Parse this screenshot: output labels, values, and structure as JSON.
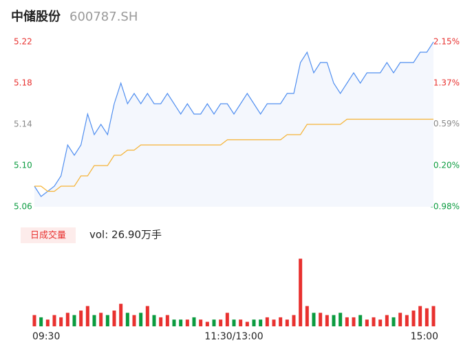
{
  "header": {
    "name": "中储股份",
    "code": "600787.SH"
  },
  "chart_data": [
    {
      "type": "line",
      "xlim": [
        0,
        240
      ],
      "xticks": [
        {
          "value": 0,
          "label": "09:30"
        },
        {
          "value": 120,
          "label": "11:30/13:00"
        },
        {
          "value": 240,
          "label": "15:00"
        }
      ],
      "ylim": [
        5.06,
        5.22
      ],
      "yticks": [
        5.06,
        {
          "value": 5.1,
          "label": "5.10"
        },
        5.14,
        5.18,
        5.22
      ],
      "ytick_colors": [
        "#0a9b3f",
        "#0a9b3f",
        "#888888",
        "#e8312f",
        "#e8312f"
      ],
      "y2lim": [
        -0.98,
        2.15
      ],
      "y2ticks": [
        {
          "value": -0.98,
          "label": "-0.98%"
        },
        {
          "value": -0.2,
          "label": "-0.20%"
        },
        {
          "value": 0.59,
          "label": "0.59%"
        },
        {
          "value": 1.37,
          "label": "1.37%"
        },
        {
          "value": 2.15,
          "label": "2.15%"
        }
      ],
      "x": [
        0,
        4,
        8,
        12,
        16,
        20,
        24,
        28,
        32,
        36,
        40,
        44,
        48,
        52,
        56,
        60,
        64,
        68,
        72,
        76,
        80,
        84,
        88,
        92,
        96,
        100,
        104,
        108,
        112,
        116,
        120,
        124,
        128,
        132,
        136,
        140,
        144,
        148,
        152,
        156,
        160,
        164,
        168,
        172,
        176,
        180,
        184,
        188,
        192,
        196,
        200,
        204,
        208,
        212,
        216,
        220,
        224,
        228,
        232,
        236,
        240
      ],
      "series": [
        {
          "name": "price",
          "color": "#4f8ef0",
          "values": [
            5.08,
            5.07,
            5.075,
            5.08,
            5.09,
            5.12,
            5.11,
            5.12,
            5.15,
            5.13,
            5.14,
            5.13,
            5.16,
            5.18,
            5.16,
            5.17,
            5.16,
            5.17,
            5.16,
            5.16,
            5.17,
            5.16,
            5.15,
            5.16,
            5.15,
            5.15,
            5.16,
            5.15,
            5.16,
            5.16,
            5.15,
            5.16,
            5.17,
            5.16,
            5.15,
            5.16,
            5.16,
            5.16,
            5.17,
            5.17,
            5.2,
            5.21,
            5.19,
            5.2,
            5.2,
            5.18,
            5.17,
            5.18,
            5.19,
            5.18,
            5.19,
            5.19,
            5.19,
            5.2,
            5.19,
            5.2,
            5.2,
            5.2,
            5.21,
            5.21,
            5.22
          ]
        },
        {
          "name": "average",
          "color": "#f5b335",
          "values": [
            5.08,
            5.08,
            5.075,
            5.075,
            5.08,
            5.08,
            5.08,
            5.09,
            5.09,
            5.1,
            5.1,
            5.1,
            5.11,
            5.11,
            5.115,
            5.115,
            5.12,
            5.12,
            5.12,
            5.12,
            5.12,
            5.12,
            5.12,
            5.12,
            5.12,
            5.12,
            5.12,
            5.12,
            5.12,
            5.125,
            5.125,
            5.125,
            5.125,
            5.125,
            5.125,
            5.125,
            5.125,
            5.125,
            5.13,
            5.13,
            5.13,
            5.14,
            5.14,
            5.14,
            5.14,
            5.14,
            5.14,
            5.145,
            5.145,
            5.145,
            5.145,
            5.145,
            5.145,
            5.145,
            5.145,
            5.145,
            5.145,
            5.145,
            5.145,
            5.145,
            5.145
          ]
        }
      ]
    },
    {
      "type": "bar",
      "title": "日成交量",
      "annotation": "vol: 26.90万手",
      "ylim": [
        0,
        3.2
      ],
      "up_color": "#e8312f",
      "down_color": "#0a9b3f",
      "values": [
        0.5,
        0.4,
        0.3,
        0.5,
        0.4,
        0.6,
        0.5,
        0.7,
        0.9,
        0.5,
        0.6,
        0.5,
        0.7,
        1.0,
        0.6,
        0.5,
        0.6,
        0.9,
        0.5,
        0.4,
        0.5,
        0.3,
        0.3,
        0.3,
        0.4,
        0.3,
        0.2,
        0.3,
        0.3,
        0.6,
        0.3,
        0.3,
        0.2,
        0.3,
        0.3,
        0.4,
        0.3,
        0.4,
        0.3,
        0.5,
        3.0,
        0.9,
        0.6,
        0.6,
        0.5,
        0.5,
        0.6,
        0.4,
        0.4,
        0.5,
        0.3,
        0.4,
        0.3,
        0.5,
        0.4,
        0.6,
        0.5,
        0.7,
        0.9,
        0.8,
        0.9
      ]
    }
  ]
}
